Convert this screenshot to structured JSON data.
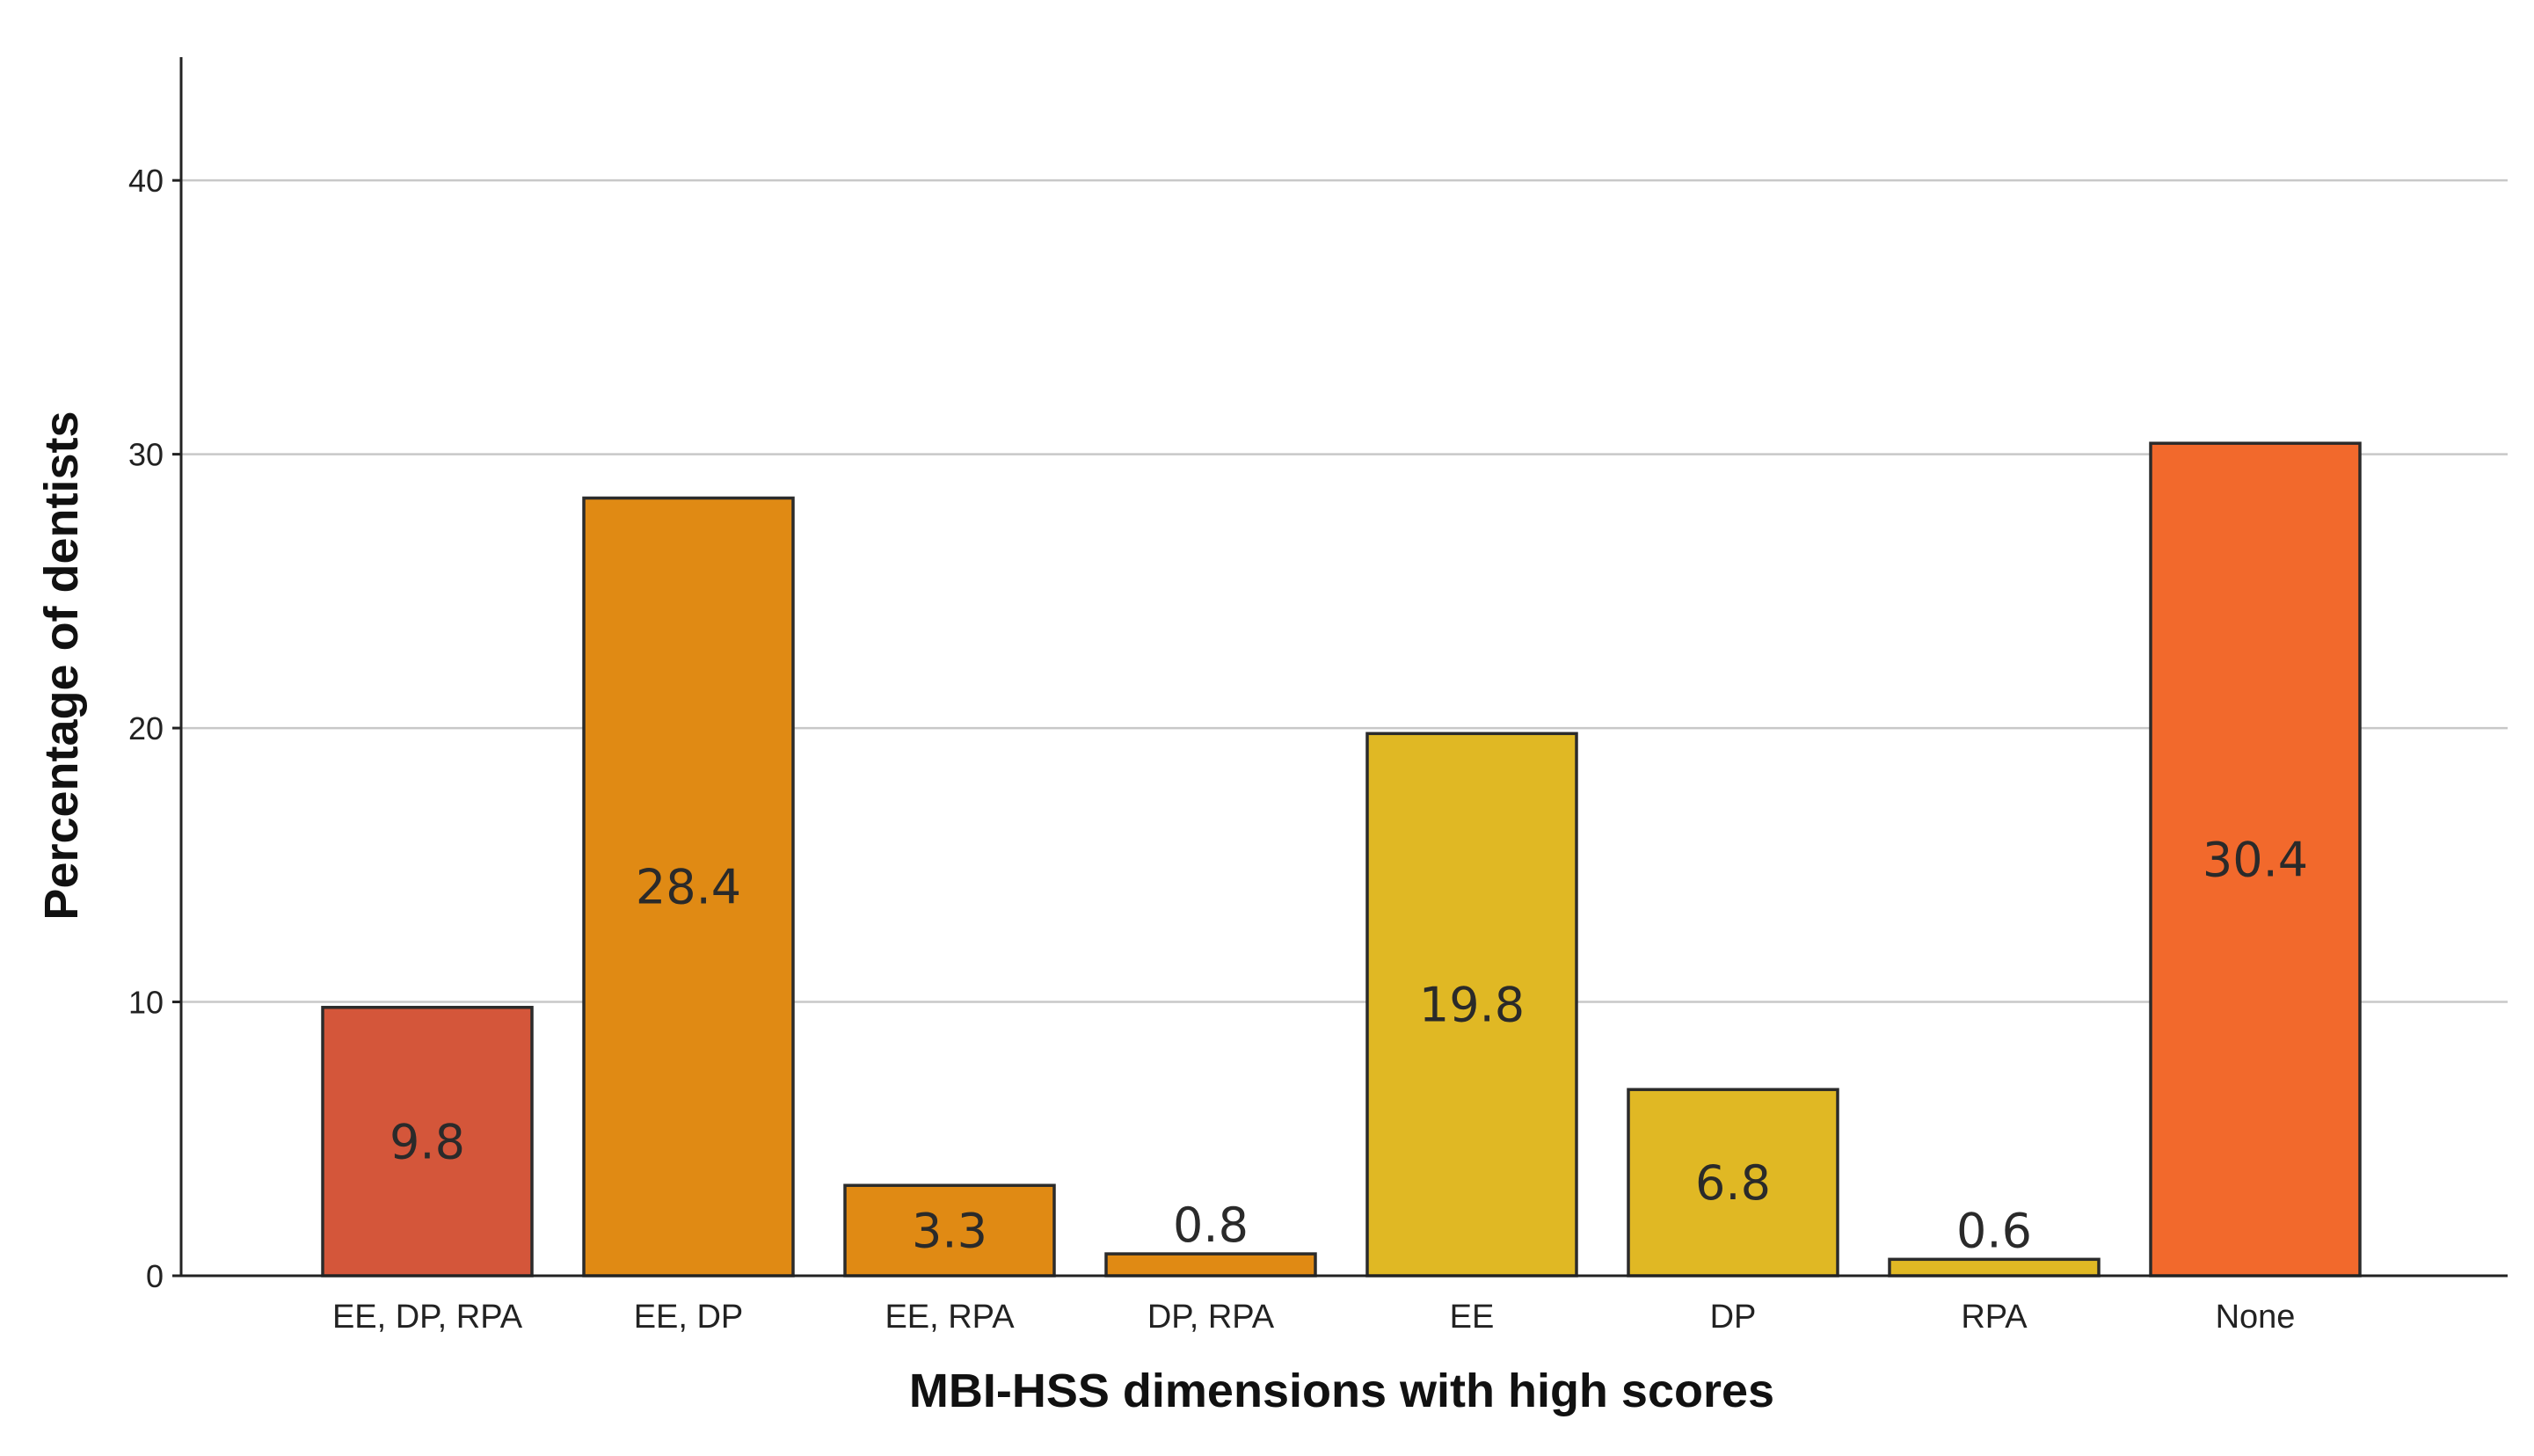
{
  "chart_data": {
    "type": "bar",
    "title": "",
    "xlabel": "MBI-HSS dimensions with high scores",
    "ylabel": "Percentage of dentists",
    "categories": [
      "EE, DP, RPA",
      "EE, DP",
      "EE, RPA",
      "DP, RPA",
      "EE",
      "DP",
      "RPA",
      "None"
    ],
    "values": [
      9.8,
      28.4,
      3.3,
      0.8,
      19.8,
      6.8,
      0.6,
      30.4
    ],
    "data_labels": [
      "9.8",
      "28.4",
      "3.3",
      "0.8",
      "19.8",
      "6.8",
      "0.6",
      "30.4"
    ],
    "colors": [
      "#d4563a",
      "#e08a14",
      "#e08a14",
      "#e08a14",
      "#e0b824",
      "#e0b824",
      "#e0b824",
      "#f2692c"
    ],
    "yticks": [
      0,
      10,
      20,
      30,
      40
    ],
    "ytick_labels": [
      "0",
      "10",
      "20",
      "30",
      "40"
    ],
    "ylim": [
      0,
      44.5
    ],
    "grid": true,
    "legend": "none"
  }
}
